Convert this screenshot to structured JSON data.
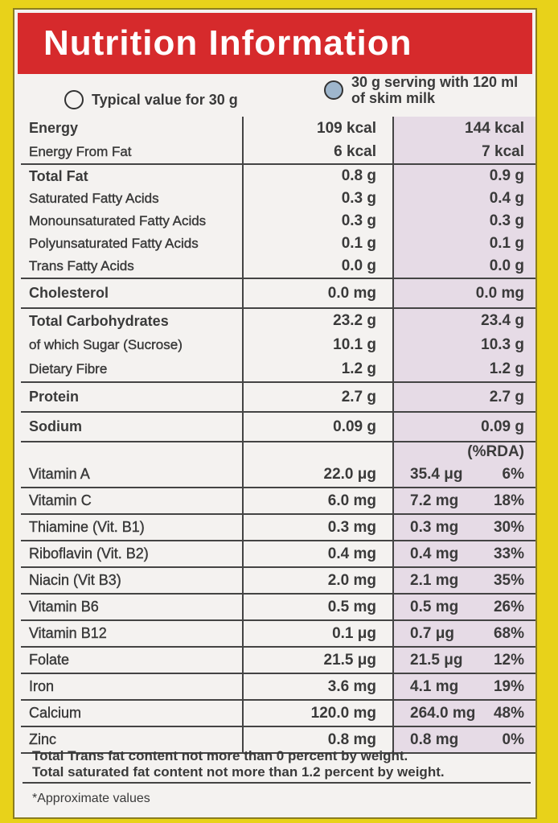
{
  "header": {
    "title": "Nutrition Information",
    "legend": [
      "Typical value for 30 g",
      "30 g serving with 120 ml of skim milk"
    ]
  },
  "groups": [
    {
      "rows": [
        {
          "label": "Energy",
          "v1": "109 kcal",
          "v2": "144 kcal"
        },
        {
          "label": "Energy From Fat",
          "v1": "6 kcal",
          "v2": "7 kcal"
        }
      ]
    },
    {
      "rows": [
        {
          "label": "Total Fat",
          "v1": "0.8 g",
          "v2": "0.9 g"
        },
        {
          "label": "Saturated Fatty Acids",
          "v1": "0.3 g",
          "v2": "0.4 g"
        },
        {
          "label": "Monounsaturated Fatty Acids",
          "v1": "0.3 g",
          "v2": "0.3 g"
        },
        {
          "label": "Polyunsaturated Fatty Acids",
          "v1": "0.1 g",
          "v2": "0.1 g"
        },
        {
          "label": "Trans Fatty Acids",
          "v1": "0.0 g",
          "v2": "0.0 g"
        }
      ]
    },
    {
      "rows": [
        {
          "label": "Cholesterol",
          "v1": "0.0 mg",
          "v2": "0.0 mg"
        }
      ]
    },
    {
      "rows": [
        {
          "label": "Total Carbohydrates",
          "v1": "23.2 g",
          "v2": "23.4 g"
        },
        {
          "label": "of which Sugar (Sucrose)",
          "v1": "10.1 g",
          "v2": "10.3 g"
        },
        {
          "label": "Dietary Fibre",
          "v1": "1.2 g",
          "v2": "1.2 g"
        }
      ]
    },
    {
      "rows": [
        {
          "label": "Protein",
          "v1": "2.7 g",
          "v2": "2.7 g"
        }
      ]
    },
    {
      "rows": [
        {
          "label": "Sodium",
          "v1": "0.09 g",
          "v2": "0.09 g"
        }
      ]
    }
  ],
  "rda_header": "(%RDA)",
  "vitamins": [
    {
      "label": "Vitamin A",
      "v1": "22.0 μg",
      "v2": "35.4 μg",
      "rda": "6%"
    },
    {
      "label": "Vitamin C",
      "v1": "6.0 mg",
      "v2": "7.2 mg",
      "rda": "18%"
    },
    {
      "label": "Thiamine (Vit. B1)",
      "v1": "0.3 mg",
      "v2": "0.3 mg",
      "rda": "30%"
    },
    {
      "label": "Riboflavin (Vit. B2)",
      "v1": "0.4 mg",
      "v2": "0.4 mg",
      "rda": "33%"
    },
    {
      "label": "Niacin (Vit B3)",
      "v1": "2.0 mg",
      "v2": "2.1 mg",
      "rda": "35%"
    },
    {
      "label": "Vitamin B6",
      "v1": "0.5 mg",
      "v2": "0.5 mg",
      "rda": "26%"
    },
    {
      "label": "Vitamin B12",
      "v1": "0.1 μg",
      "v2": "0.7 μg",
      "rda": "68%"
    },
    {
      "label": "Folate",
      "v1": "21.5 μg",
      "v2": "21.5 μg",
      "rda": "12%"
    },
    {
      "label": "Iron",
      "v1": "3.6 mg",
      "v2": "4.1 mg",
      "rda": "19%"
    },
    {
      "label": "Calcium",
      "v1": "120.0 mg",
      "v2": "264.0 mg",
      "rda": "48%"
    },
    {
      "label": "Zinc",
      "v1": "0.8 mg",
      "v2": "0.8 mg",
      "rda": "0%"
    }
  ],
  "notes": [
    "Total Trans fat content not more than 0 percent by weight.",
    "Total saturated fat content not more than 1.2 percent by weight."
  ],
  "footnote": "*Approximate values"
}
